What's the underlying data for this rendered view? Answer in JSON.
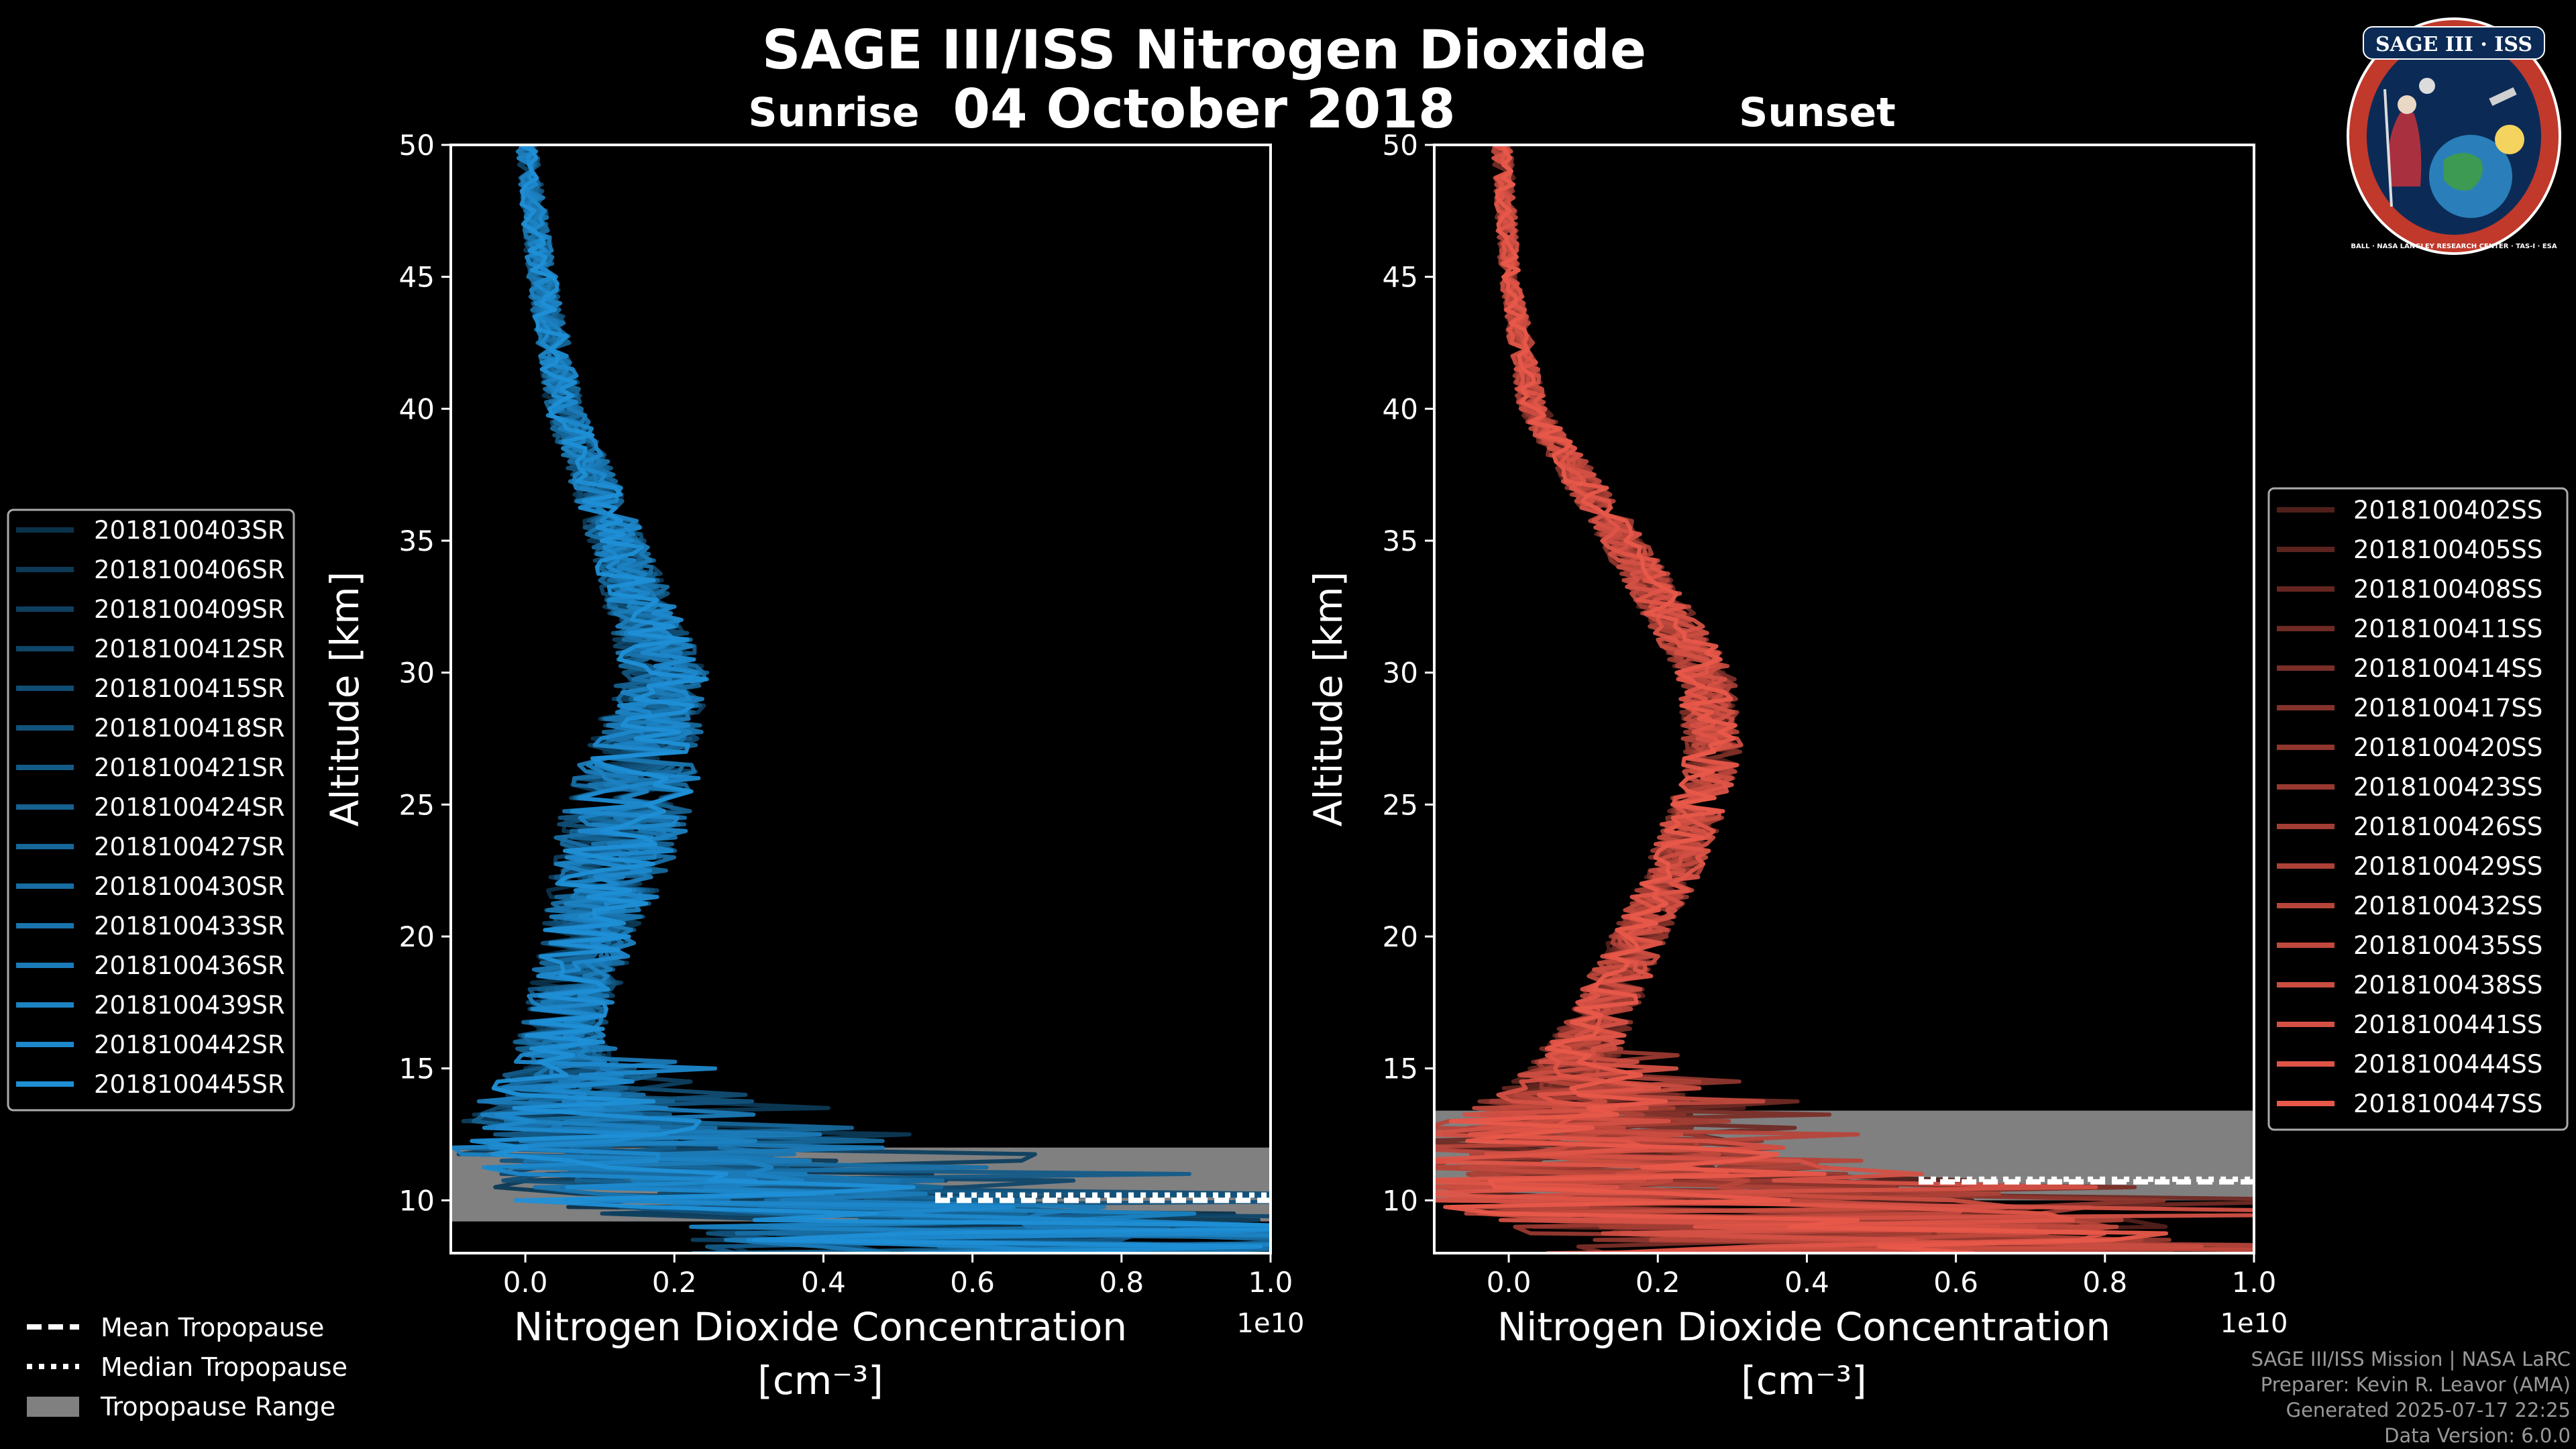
{
  "figure": {
    "title": "SAGE III/ISS Nitrogen Dioxide",
    "date": "04 October 2018",
    "credits": [
      "SAGE III/ISS Mission | NASA LaRC",
      "Preparer: Kevin R. Leavor (AMA)",
      "Generated 2025-07-17 22:25",
      "Data Version: 6.0.0"
    ],
    "logo_text": "SAGE III · ISS",
    "logo_ring_text": "BALL · NASA LANGLEY RESEARCH CENTER · TAS-I · ESA"
  },
  "tropopause_legend": [
    "Mean Tropopause",
    "Median Tropopause",
    "Tropopause Range"
  ],
  "colors": {
    "sunrise": "#1f8fd6",
    "sunset": "#e8584a",
    "background": "#000000",
    "tropopause_range": "#808080"
  },
  "chart_data": [
    {
      "type": "line",
      "title": "Sunrise",
      "xlabel": "Nitrogen Dioxide Concentration",
      "xlabel_unit": "[cm⁻³]",
      "x_multiplier_label": "1e10",
      "ylabel": "Altitude [km]",
      "xlim": [
        -0.1,
        1.0
      ],
      "ylim": [
        8,
        50
      ],
      "xticks": [
        "0.0",
        "0.2",
        "0.4",
        "0.6",
        "0.8",
        "1.0"
      ],
      "yticks": [
        "10",
        "15",
        "20",
        "25",
        "30",
        "35",
        "40",
        "45",
        "50"
      ],
      "grid": false,
      "legend_position": "left",
      "tropopause": {
        "mean_km": 10.0,
        "median_km": 10.2,
        "range_km": [
          9.2,
          12.0
        ]
      },
      "series_names": [
        "2018100403SR",
        "2018100406SR",
        "2018100409SR",
        "2018100412SR",
        "2018100415SR",
        "2018100418SR",
        "2018100421SR",
        "2018100424SR",
        "2018100427SR",
        "2018100430SR",
        "2018100433SR",
        "2018100436SR",
        "2018100439SR",
        "2018100442SR",
        "2018100445SR"
      ],
      "profile_envelope": {
        "altitude_km": [
          50,
          45,
          40,
          35,
          30,
          27,
          25,
          22,
          20,
          17,
          15,
          13,
          12,
          10,
          9
        ],
        "typical": [
          0.0,
          0.02,
          0.05,
          0.12,
          0.18,
          0.15,
          0.13,
          0.1,
          0.08,
          0.05,
          0.04,
          0.06,
          0.1,
          0.3,
          0.6
        ],
        "spread": [
          0.02,
          0.03,
          0.04,
          0.06,
          0.09,
          0.12,
          0.14,
          0.12,
          0.1,
          0.09,
          0.12,
          0.25,
          0.35,
          0.55,
          0.7
        ]
      }
    },
    {
      "type": "line",
      "title": "Sunset",
      "xlabel": "Nitrogen Dioxide Concentration",
      "xlabel_unit": "[cm⁻³]",
      "x_multiplier_label": "1e10",
      "ylabel": "Altitude [km]",
      "xlim": [
        -0.1,
        1.0
      ],
      "ylim": [
        8,
        50
      ],
      "xticks": [
        "0.0",
        "0.2",
        "0.4",
        "0.6",
        "0.8",
        "1.0"
      ],
      "yticks": [
        "10",
        "15",
        "20",
        "25",
        "30",
        "35",
        "40",
        "45",
        "50"
      ],
      "grid": false,
      "legend_position": "right",
      "tropopause": {
        "mean_km": 10.7,
        "median_km": 10.8,
        "range_km": [
          10.0,
          13.4
        ]
      },
      "series_names": [
        "2018100402SS",
        "2018100405SS",
        "2018100408SS",
        "2018100411SS",
        "2018100414SS",
        "2018100417SS",
        "2018100420SS",
        "2018100423SS",
        "2018100426SS",
        "2018100429SS",
        "2018100432SS",
        "2018100435SS",
        "2018100438SS",
        "2018100441SS",
        "2018100444SS",
        "2018100447SS"
      ],
      "profile_envelope": {
        "altitude_km": [
          50,
          45,
          40,
          35,
          30,
          27,
          25,
          22,
          20,
          17,
          15,
          13,
          12,
          10,
          9
        ],
        "typical": [
          -0.01,
          0.0,
          0.03,
          0.15,
          0.26,
          0.27,
          0.25,
          0.21,
          0.17,
          0.12,
          0.08,
          0.05,
          0.05,
          0.2,
          0.4
        ],
        "spread": [
          0.02,
          0.02,
          0.03,
          0.05,
          0.06,
          0.06,
          0.06,
          0.06,
          0.06,
          0.07,
          0.1,
          0.25,
          0.4,
          0.6,
          0.7
        ]
      }
    }
  ]
}
